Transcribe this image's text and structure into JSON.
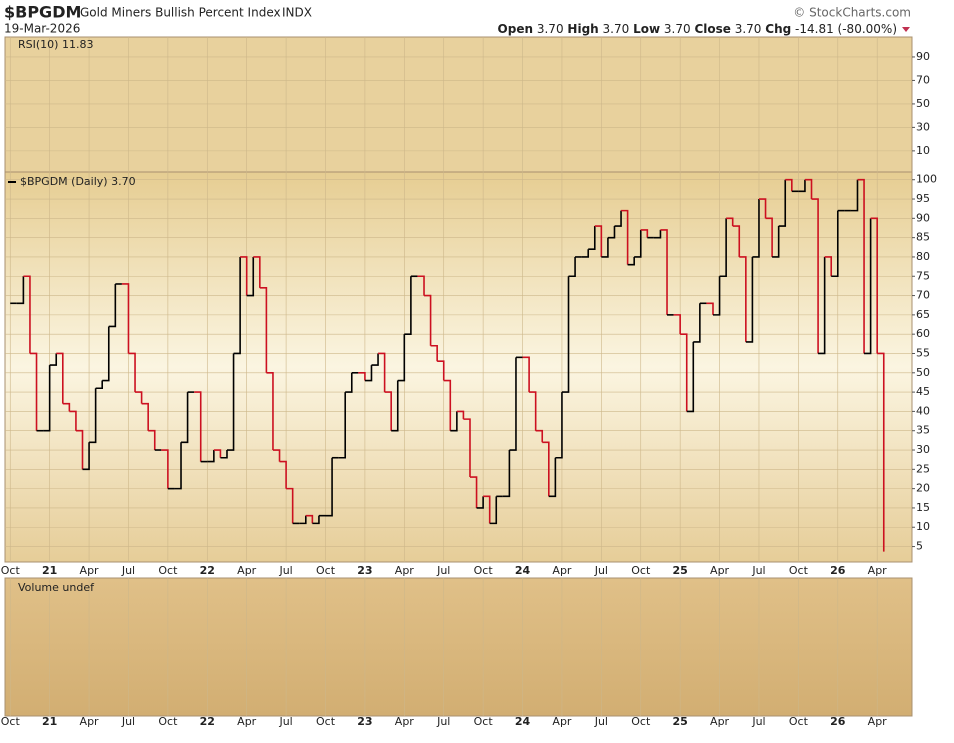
{
  "chart_data": {
    "type": "line",
    "symbol": "$BPGDM",
    "title": "Gold Miners Bullish Percent Index",
    "exchange": "INDX",
    "date": "19-Mar-2026",
    "watermark": "© StockCharts.com",
    "quote": {
      "open_label": "Open",
      "open": "3.70",
      "high_label": "High",
      "high": "3.70",
      "low_label": "Low",
      "low": "3.70",
      "close_label": "Close",
      "close": "3.70",
      "chg_label": "Chg",
      "chg": "-14.81 (-80.00%)"
    },
    "rsi_panel": {
      "label": "RSI(10) 11.83",
      "ylim": [
        -8,
        107
      ],
      "yticks": [
        10,
        30,
        50,
        70,
        90
      ]
    },
    "volume_panel": {
      "label": "Volume undef"
    },
    "series": [
      {
        "name": "$BPGDM (Daily) 3.70",
        "color": "#000000",
        "down_color": "#cc1020",
        "values": [
          68,
          68,
          75,
          55,
          35,
          35,
          52,
          55,
          42,
          40,
          35,
          25,
          32,
          46,
          48,
          62,
          73,
          73,
          55,
          45,
          42,
          35,
          30,
          30,
          20,
          20,
          32,
          45,
          45,
          27,
          27,
          30,
          28,
          30,
          55,
          80,
          70,
          80,
          72,
          50,
          30,
          27,
          20,
          11,
          11,
          13,
          11,
          13,
          13,
          28,
          28,
          45,
          50,
          50,
          48,
          52,
          55,
          45,
          35,
          48,
          60,
          75,
          75,
          70,
          57,
          53,
          48,
          35,
          40,
          38,
          23,
          15,
          18,
          11,
          18,
          18,
          30,
          54,
          54,
          45,
          35,
          32,
          18,
          28,
          45,
          75,
          80,
          80,
          82,
          88,
          80,
          85,
          88,
          92,
          78,
          80,
          87,
          85,
          85,
          87,
          65,
          65,
          60,
          40,
          58,
          68,
          68,
          65,
          75,
          90,
          88,
          80,
          58,
          80,
          95,
          90,
          80,
          88,
          100,
          97,
          97,
          100,
          95,
          55,
          80,
          75,
          92,
          92,
          92,
          100,
          55,
          90,
          55,
          3.7
        ]
      }
    ],
    "xlim": [
      -0.8,
      137.3
    ],
    "xticks": [
      {
        "value": 0,
        "label": "Oct"
      },
      {
        "value": 6,
        "label": "21"
      },
      {
        "value": 12,
        "label": "Apr"
      },
      {
        "value": 18,
        "label": "Jul"
      },
      {
        "value": 24,
        "label": "Oct"
      },
      {
        "value": 30,
        "label": "22"
      },
      {
        "value": 36,
        "label": "Apr"
      },
      {
        "value": 42,
        "label": "Jul"
      },
      {
        "value": 48,
        "label": "Oct"
      },
      {
        "value": 54,
        "label": "23"
      },
      {
        "value": 60,
        "label": "Apr"
      },
      {
        "value": 66,
        "label": "Jul"
      },
      {
        "value": 72,
        "label": "Oct"
      },
      {
        "value": 78,
        "label": "24"
      },
      {
        "value": 84,
        "label": "Apr"
      },
      {
        "value": 90,
        "label": "Jul"
      },
      {
        "value": 96,
        "label": "Oct"
      },
      {
        "value": 102,
        "label": "25"
      },
      {
        "value": 108,
        "label": "Apr"
      },
      {
        "value": 114,
        "label": "Jul"
      },
      {
        "value": 120,
        "label": "Oct"
      },
      {
        "value": 126,
        "label": "26"
      },
      {
        "value": 132,
        "label": "Apr"
      }
    ],
    "ylim": [
      1,
      102
    ],
    "yticks": [
      5,
      10,
      15,
      20,
      25,
      30,
      35,
      40,
      45,
      50,
      55,
      60,
      65,
      70,
      75,
      80,
      85,
      90,
      95,
      100
    ],
    "grid": true
  }
}
